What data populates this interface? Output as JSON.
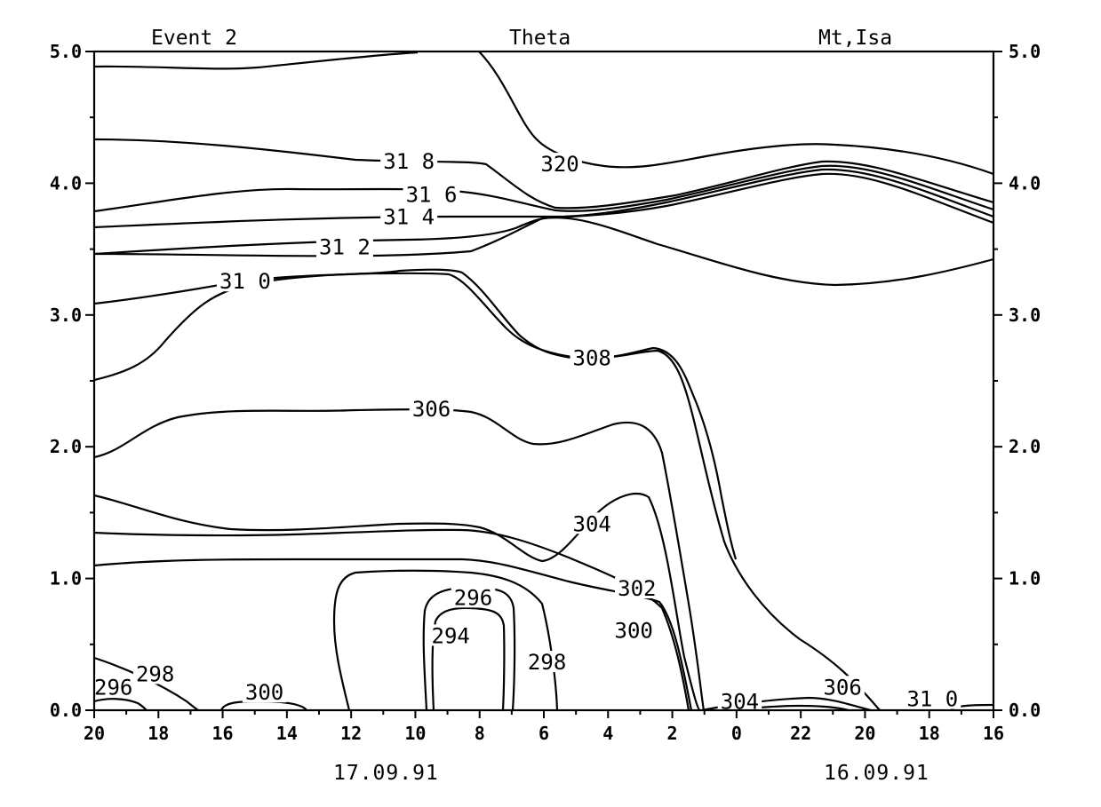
{
  "chart_data": {
    "type": "contour",
    "title": "Theta",
    "subtitle_left": "Event 2",
    "subtitle_right": "Mt,Isa",
    "xlabel": "",
    "ylabel": "",
    "x_ticks": [
      "20",
      "18",
      "16",
      "14",
      "12",
      "10",
      "8",
      "6",
      "4",
      "2",
      "0",
      "22",
      "20",
      "18",
      "16"
    ],
    "x_date_labels": [
      "17.09.91",
      "16.09.91"
    ],
    "y_ticks": [
      "0.0",
      "1.0",
      "2.0",
      "3.0",
      "4.0",
      "5.0"
    ],
    "ylim": [
      0,
      5
    ],
    "grid": false,
    "x_axis_note": "time runs right to left; hours 20 (17.09.91) back to 16 (16.09.91)",
    "contour_levels": [
      294,
      296,
      298,
      300,
      302,
      304,
      306,
      308,
      310,
      312,
      314,
      316,
      318,
      320
    ],
    "contour_labels": [
      {
        "text": "320",
        "x_hour": 5.5,
        "z": 4.15
      },
      {
        "text": "31 8",
        "x_hour": 10.2,
        "z": 4.17
      },
      {
        "text": "31 6",
        "x_hour": 9.5,
        "z": 3.92
      },
      {
        "text": "31 4",
        "x_hour": 10.2,
        "z": 3.75
      },
      {
        "text": "31 2",
        "x_hour": 12.2,
        "z": 3.52
      },
      {
        "text": "31 0",
        "x_hour": 15.3,
        "z": 3.26
      },
      {
        "text": "308",
        "x_hour": 4.5,
        "z": 2.68
      },
      {
        "text": "306",
        "x_hour": 9.5,
        "z": 2.29
      },
      {
        "text": "304",
        "x_hour": 4.5,
        "z": 1.42
      },
      {
        "text": "302",
        "x_hour": 3.1,
        "z": 0.93
      },
      {
        "text": "300",
        "x_hour": 3.2,
        "z": 0.61
      },
      {
        "text": "296",
        "x_hour": 8.2,
        "z": 0.86
      },
      {
        "text": "294",
        "x_hour": 8.9,
        "z": 0.57
      },
      {
        "text": "298",
        "x_hour": 5.9,
        "z": 0.37
      },
      {
        "text": "298",
        "x_hour": 18.1,
        "z": 0.28
      },
      {
        "text": "296",
        "x_hour": 19.4,
        "z": 0.18
      },
      {
        "text": "300",
        "x_hour": 14.7,
        "z": 0.14
      },
      {
        "text": "304",
        "x_hour": -0.1,
        "z": 0.07
      },
      {
        "text": "306",
        "x_hour": -3.3,
        "z": 0.18
      },
      {
        "text": "31 0",
        "x_hour": -6.1,
        "z": 0.09
      }
    ]
  }
}
